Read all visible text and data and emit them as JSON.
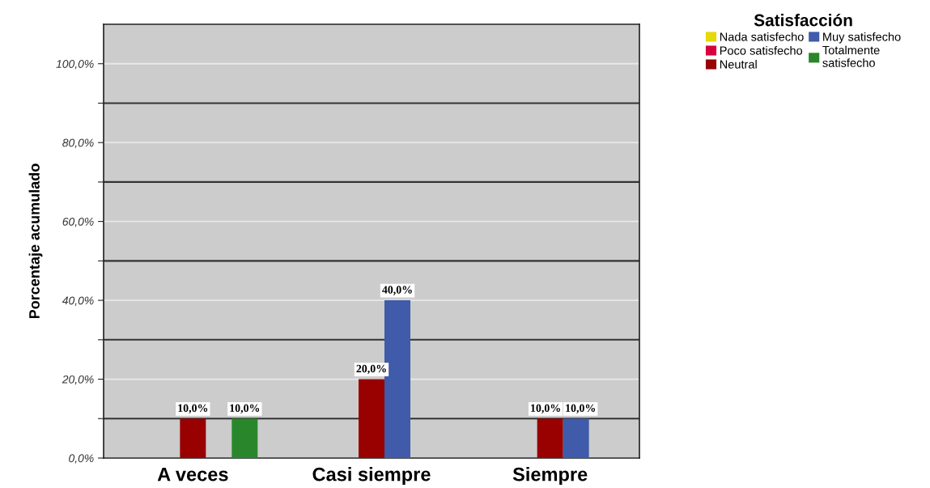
{
  "chart_data": {
    "type": "bar",
    "ylabel": "Porcentaje acumulado",
    "legend_title": "Satisfacción",
    "categories": [
      "A veces",
      "Casi siempre",
      "Siempre"
    ],
    "series": [
      {
        "name": "Nada satisfecho",
        "color": "#e6d80c",
        "values": [
          null,
          null,
          null
        ]
      },
      {
        "name": "Poco satisfecho",
        "color": "#d8003c",
        "values": [
          null,
          null,
          null
        ]
      },
      {
        "name": "Neutral",
        "color": "#990000",
        "values": [
          10,
          20,
          10
        ],
        "value_labels": [
          "10,0%",
          "20,0%",
          "10,0%"
        ]
      },
      {
        "name": "Muy satisfecho",
        "color": "#3f5ba9",
        "values": [
          null,
          40,
          10
        ],
        "value_labels": [
          null,
          "40,0%",
          "10,0%"
        ]
      },
      {
        "name": "Totalmente satisfecho",
        "color": "#2a862a",
        "values": [
          10,
          null,
          null
        ],
        "value_labels": [
          "10,0%",
          null,
          null
        ]
      }
    ],
    "ylim": [
      0,
      110
    ],
    "yticks": [
      {
        "value": 0,
        "label": "0,0%"
      },
      {
        "value": 10,
        "label": null
      },
      {
        "value": 20,
        "label": "20,0%"
      },
      {
        "value": 30,
        "label": null
      },
      {
        "value": 40,
        "label": "40,0%"
      },
      {
        "value": 50,
        "label": null
      },
      {
        "value": 60,
        "label": "60,0%"
      },
      {
        "value": 70,
        "label": null
      },
      {
        "value": 80,
        "label": "80,0%"
      },
      {
        "value": 90,
        "label": null
      },
      {
        "value": 100,
        "label": "100,0%"
      }
    ],
    "grid": "y",
    "legend": "top right"
  }
}
